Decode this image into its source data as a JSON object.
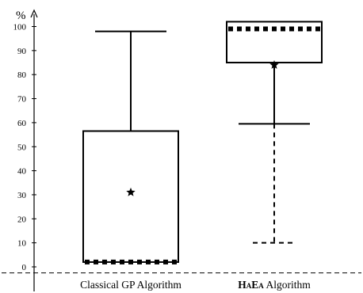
{
  "chart_data": {
    "type": "boxplot",
    "title": "",
    "ylabel": "%",
    "xlabel": "",
    "ylim": [
      -2,
      103
    ],
    "yticks": [
      0,
      10,
      20,
      30,
      40,
      50,
      60,
      70,
      80,
      90,
      100
    ],
    "ytick_labels": [
      "0",
      "10",
      "20",
      "30",
      "40",
      "50",
      "60",
      "70",
      "80",
      "90",
      "100"
    ],
    "baseline_value": -2.5,
    "categories": [
      "Classical GP Algorithm",
      "HaEa Algorithm"
    ],
    "category_labels": [
      {
        "strong": "",
        "rest": "Classical GP Algorithm"
      },
      {
        "strong": "HaEa",
        "rest": " Algorithm"
      }
    ],
    "boxes": [
      {
        "name": "Classical GP Algorithm",
        "q1": 2,
        "median": 2,
        "q3": 56.5,
        "mean": 31,
        "whisker_high": 98,
        "whisker_low": null,
        "whisker_low_style": null
      },
      {
        "name": "HaEa Algorithm",
        "q1": 85,
        "median": 99,
        "q3": 102,
        "mean": 84,
        "whisker_high": null,
        "whisker_low": 59.5,
        "whisker_low_style": "solid",
        "outer_low": 10,
        "outer_low_style": "dashed"
      }
    ],
    "colors": {
      "stroke": "#000000",
      "background": "#ffffff"
    }
  }
}
